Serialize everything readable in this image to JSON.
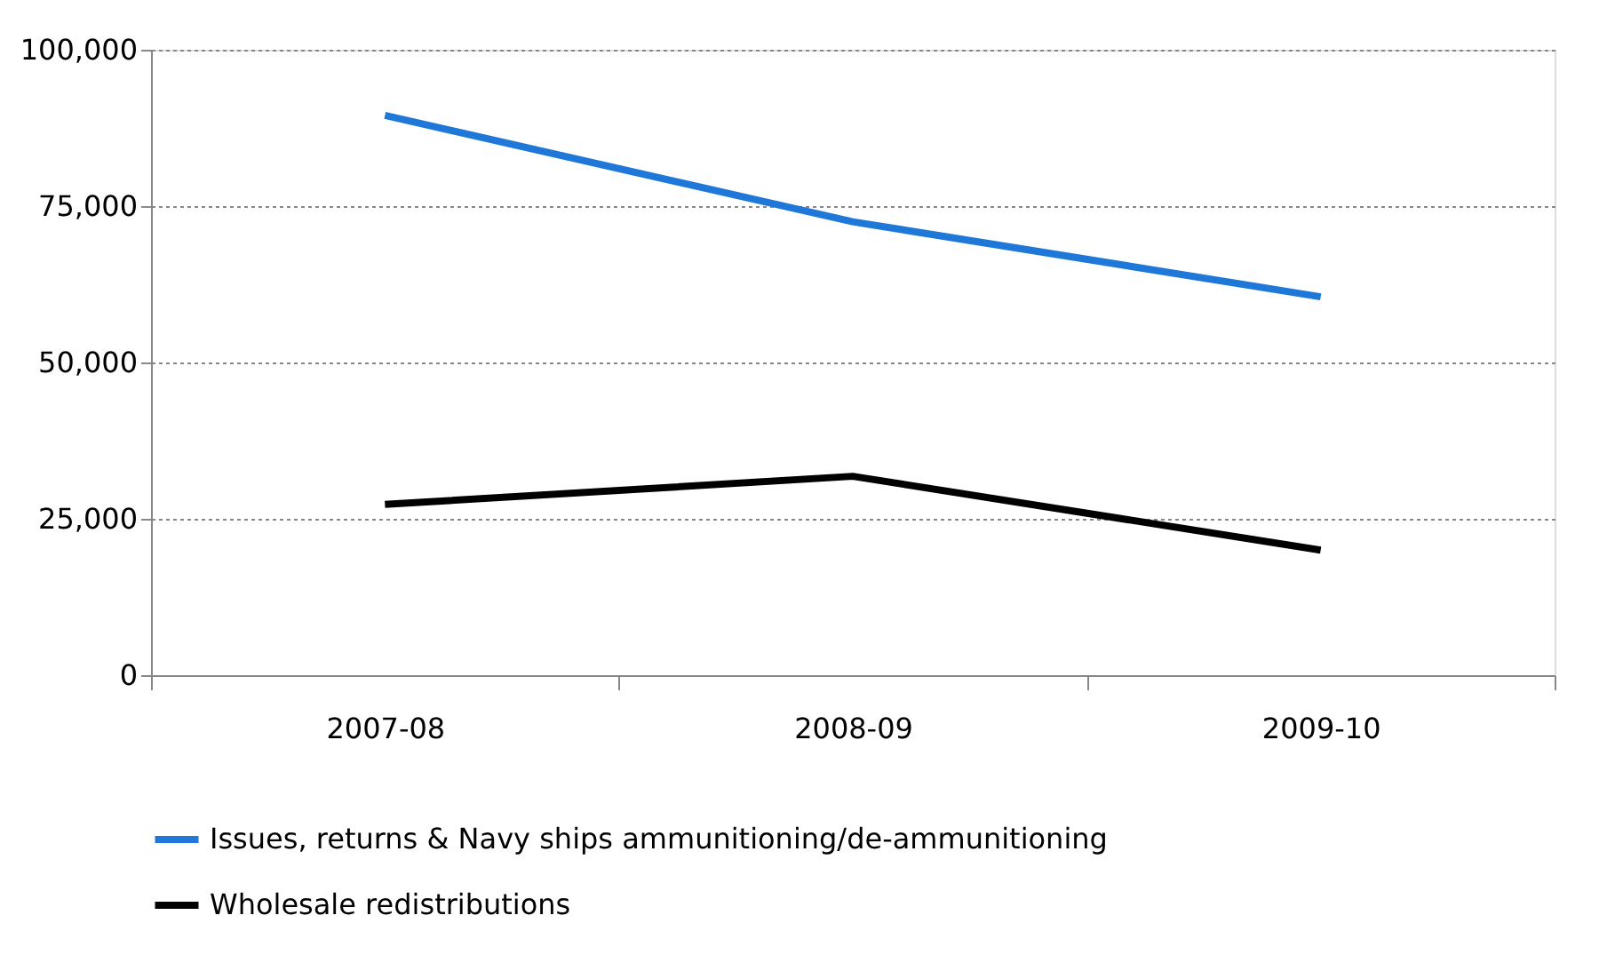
{
  "chart_data": {
    "type": "line",
    "categories": [
      "2007-08",
      "2008-09",
      "2009-10"
    ],
    "series": [
      {
        "name": "Issues, returns & Navy ships ammunitioning/de-ammunitioning",
        "color": "#1f78d8",
        "values": [
          89500,
          72500,
          60500
        ]
      },
      {
        "name": "Wholesale redistributions",
        "color": "#000000",
        "values": [
          27300,
          31800,
          20000
        ]
      }
    ],
    "ylim": [
      0,
      100000
    ],
    "yticks": [
      {
        "value": 0,
        "label": "0"
      },
      {
        "value": 25000,
        "label": "25,000"
      },
      {
        "value": 50000,
        "label": "50,000"
      },
      {
        "value": 75000,
        "label": "75,000"
      },
      {
        "value": 100000,
        "label": "100,000"
      }
    ],
    "grid": "y",
    "legend": "bottom",
    "marker": "none",
    "line_style": "solid"
  }
}
